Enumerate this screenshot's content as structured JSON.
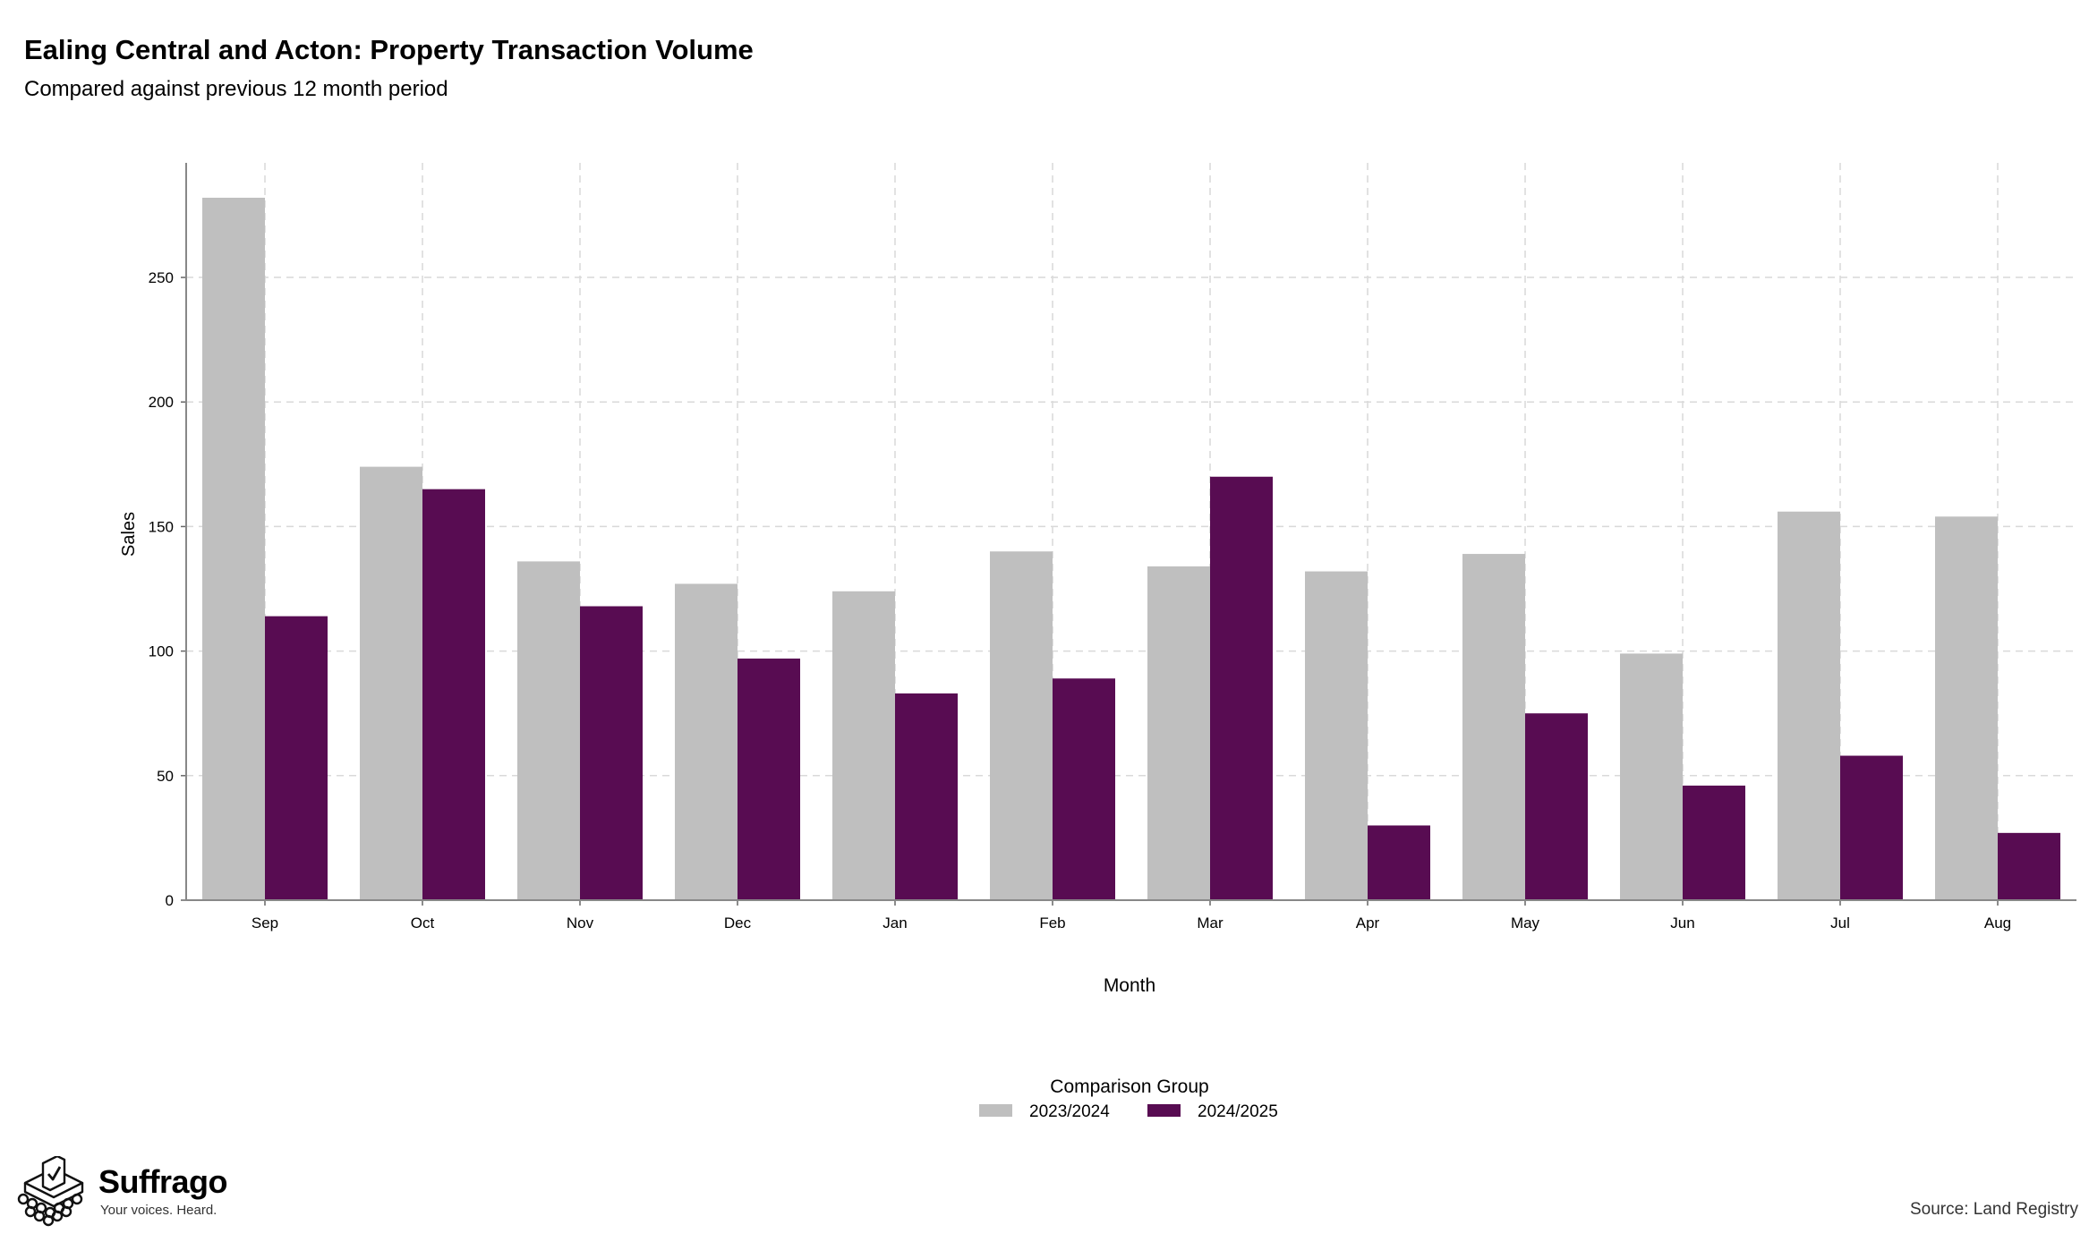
{
  "header": {
    "title": "Ealing Central and Acton: Property Transaction Volume",
    "subtitle": "Compared against previous 12 month period"
  },
  "chart_data": {
    "type": "bar",
    "title": "Ealing Central and Acton: Property Transaction Volume",
    "subtitle": "Compared against previous 12 month period",
    "xlabel": "Month",
    "ylabel": "Sales",
    "categories": [
      "Sep",
      "Oct",
      "Nov",
      "Dec",
      "Jan",
      "Feb",
      "Mar",
      "Apr",
      "May",
      "Jun",
      "Jul",
      "Aug"
    ],
    "series": [
      {
        "name": "2023/2024",
        "color": "#bfbfbf",
        "values": [
          282,
          174,
          136,
          127,
          124,
          140,
          134,
          132,
          139,
          99,
          156,
          154
        ]
      },
      {
        "name": "2024/2025",
        "color": "#580c52",
        "values": [
          114,
          165,
          118,
          97,
          83,
          89,
          170,
          30,
          75,
          46,
          58,
          27
        ]
      }
    ],
    "ylim": [
      0,
      296
    ],
    "yticks": [
      0,
      50,
      100,
      150,
      200,
      250
    ],
    "grid": true,
    "legend": {
      "title": "Comparison Group",
      "position": "bottom"
    }
  },
  "branding": {
    "name": "Suffrago",
    "tagline": "Your voices. Heard.",
    "logo_icon": "ballot-box-icon"
  },
  "footer": {
    "source": "Source: Land Registry"
  }
}
